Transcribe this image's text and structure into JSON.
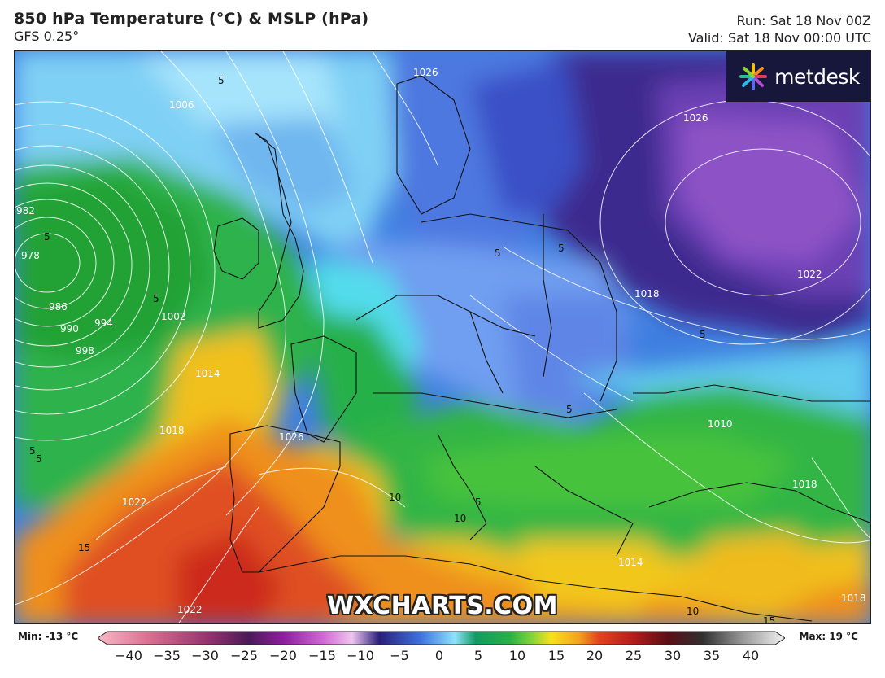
{
  "header": {
    "title": "850 hPa Temperature (°C) & MSLP (hPa)",
    "model": "GFS 0.25°",
    "run": "Run: Sat 18 Nov 00Z",
    "valid": "Valid: Sat 18 Nov 00:00 UTC"
  },
  "logo": {
    "text": "metdesk"
  },
  "watermark": "WXCHARTS.COM",
  "legend": {
    "min_label": "Min: -13 °C",
    "max_label": "Max: 19 °C",
    "ticks": [
      "−40",
      "−35",
      "−30",
      "−25",
      "−20",
      "−15",
      "−10",
      "−5",
      "0",
      "5",
      "10",
      "15",
      "20",
      "25",
      "30",
      "35",
      "40"
    ]
  },
  "isobar_labels": [
    "1006",
    "1026",
    "1026",
    "1022",
    "1018",
    "982",
    "978",
    "986",
    "990",
    "994",
    "998",
    "1002",
    "1014",
    "1018",
    "1022",
    "1026",
    "1010",
    "1018",
    "1014",
    "1022",
    "1018"
  ],
  "temp_labels": [
    "5",
    "5",
    "5",
    "5",
    "5",
    "5",
    "5",
    "5",
    "5",
    "15",
    "10",
    "10",
    "10",
    "5",
    "15"
  ]
}
